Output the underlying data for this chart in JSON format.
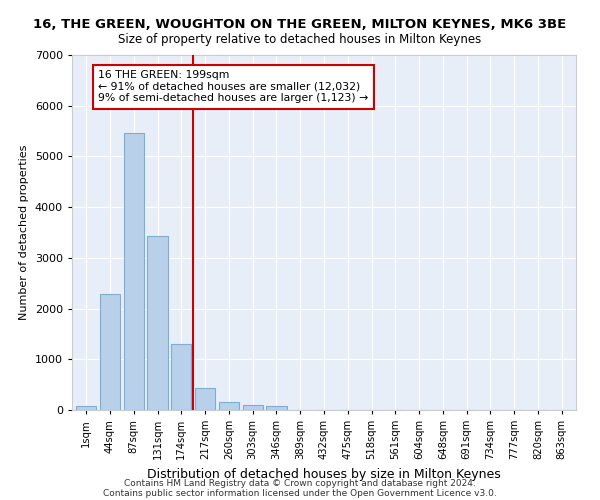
{
  "title": "16, THE GREEN, WOUGHTON ON THE GREEN, MILTON KEYNES, MK6 3BE",
  "subtitle": "Size of property relative to detached houses in Milton Keynes",
  "xlabel": "Distribution of detached houses by size in Milton Keynes",
  "ylabel": "Number of detached properties",
  "categories": [
    "1sqm",
    "44sqm",
    "87sqm",
    "131sqm",
    "174sqm",
    "217sqm",
    "260sqm",
    "303sqm",
    "346sqm",
    "389sqm",
    "432sqm",
    "475sqm",
    "518sqm",
    "561sqm",
    "604sqm",
    "648sqm",
    "691sqm",
    "734sqm",
    "777sqm",
    "820sqm",
    "863sqm"
  ],
  "values": [
    75,
    2280,
    5460,
    3430,
    1310,
    430,
    165,
    100,
    70,
    0,
    0,
    0,
    0,
    0,
    0,
    0,
    0,
    0,
    0,
    0,
    0
  ],
  "bar_color": "#b8d0ea",
  "bar_edge_color": "#7aaed4",
  "marker_line_color": "#cc0000",
  "annotation_line1": "16 THE GREEN: 199sqm",
  "annotation_line2": "← 91% of detached houses are smaller (12,032)",
  "annotation_line3": "9% of semi-detached houses are larger (1,123) →",
  "annotation_box_color": "#ffffff",
  "annotation_box_edge": "#cc0000",
  "ylim": [
    0,
    7000
  ],
  "yticks": [
    0,
    1000,
    2000,
    3000,
    4000,
    5000,
    6000,
    7000
  ],
  "background_color": "#e8eef8",
  "footer1": "Contains HM Land Registry data © Crown copyright and database right 2024.",
  "footer2": "Contains public sector information licensed under the Open Government Licence v3.0."
}
